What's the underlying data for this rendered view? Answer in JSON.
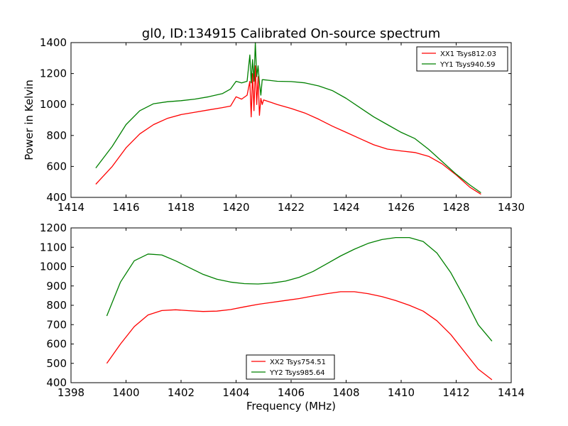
{
  "figure": {
    "title": "gl0, ID:134915 Calibrated On-source spectrum",
    "ylabel": "Power in Kelvin",
    "xlabel": "Frequency (MHz)"
  },
  "chart_data": [
    {
      "type": "line",
      "title": "gl0, ID:134915 Calibrated On-source spectrum",
      "ylabel": "Power in Kelvin",
      "xlabel": "",
      "xlim": [
        1414,
        1430
      ],
      "ylim": [
        400,
        1400
      ],
      "xticks": [
        1414,
        1416,
        1418,
        1420,
        1422,
        1424,
        1426,
        1428,
        1430
      ],
      "yticks": [
        400,
        600,
        800,
        1000,
        1200,
        1400
      ],
      "grid": false,
      "legend_position": "top-right",
      "series": [
        {
          "name": "XX1 Tsys812.03",
          "color": "#ff0000",
          "x": [
            1414.9,
            1415.5,
            1416.0,
            1416.5,
            1417.0,
            1417.5,
            1418.0,
            1418.5,
            1419.0,
            1419.5,
            1419.8,
            1420.0,
            1420.2,
            1420.4,
            1420.5,
            1420.55,
            1420.6,
            1420.65,
            1420.7,
            1420.75,
            1420.8,
            1420.85,
            1420.9,
            1420.95,
            1421.0,
            1421.5,
            1422.0,
            1422.5,
            1423.0,
            1423.5,
            1424.0,
            1424.5,
            1425.0,
            1425.5,
            1426.0,
            1426.5,
            1427.0,
            1427.5,
            1428.0,
            1428.5,
            1428.9
          ],
          "y": [
            485,
            600,
            720,
            810,
            870,
            910,
            935,
            950,
            965,
            980,
            990,
            1050,
            1035,
            1060,
            1150,
            920,
            1200,
            960,
            1250,
            1000,
            1180,
            930,
            1040,
            1000,
            1030,
            1000,
            975,
            945,
            905,
            860,
            820,
            780,
            740,
            712,
            700,
            690,
            665,
            615,
            545,
            465,
            420
          ]
        },
        {
          "name": "YY1 Tsys940.59",
          "color": "#008000",
          "x": [
            1414.9,
            1415.5,
            1416.0,
            1416.5,
            1417.0,
            1417.5,
            1418.0,
            1418.5,
            1419.0,
            1419.5,
            1419.8,
            1420.0,
            1420.2,
            1420.4,
            1420.5,
            1420.55,
            1420.6,
            1420.65,
            1420.7,
            1420.75,
            1420.8,
            1420.85,
            1420.9,
            1420.95,
            1421.0,
            1421.5,
            1422.0,
            1422.5,
            1423.0,
            1423.5,
            1424.0,
            1424.5,
            1425.0,
            1425.5,
            1426.0,
            1426.5,
            1427.0,
            1427.5,
            1428.0,
            1428.5,
            1428.9
          ],
          "y": [
            590,
            730,
            870,
            960,
            1005,
            1018,
            1025,
            1035,
            1050,
            1070,
            1100,
            1150,
            1140,
            1150,
            1320,
            1140,
            1290,
            1150,
            1400,
            1180,
            1250,
            1140,
            1060,
            1160,
            1160,
            1150,
            1148,
            1140,
            1120,
            1090,
            1040,
            980,
            920,
            870,
            820,
            780,
            710,
            630,
            550,
            480,
            430
          ]
        }
      ]
    },
    {
      "type": "line",
      "title": "",
      "ylabel": "",
      "xlabel": "Frequency (MHz)",
      "xlim": [
        1398,
        1414
      ],
      "ylim": [
        400,
        1200
      ],
      "xticks": [
        1398,
        1400,
        1402,
        1404,
        1406,
        1408,
        1410,
        1412,
        1414
      ],
      "yticks": [
        400,
        500,
        600,
        700,
        800,
        900,
        1000,
        1100,
        1200
      ],
      "grid": false,
      "legend_position": "bottom-center",
      "series": [
        {
          "name": "XX2 Tsys754.51",
          "color": "#ff0000",
          "x": [
            1399.3,
            1399.8,
            1400.3,
            1400.8,
            1401.3,
            1401.8,
            1402.3,
            1402.8,
            1403.3,
            1403.8,
            1404.3,
            1404.8,
            1405.3,
            1405.8,
            1406.3,
            1406.8,
            1407.3,
            1407.8,
            1408.3,
            1408.8,
            1409.3,
            1409.8,
            1410.3,
            1410.8,
            1411.3,
            1411.8,
            1412.3,
            1412.8,
            1413.3
          ],
          "y": [
            500,
            600,
            690,
            750,
            773,
            777,
            772,
            768,
            770,
            778,
            792,
            805,
            815,
            825,
            835,
            848,
            860,
            870,
            870,
            860,
            845,
            825,
            800,
            770,
            720,
            650,
            560,
            470,
            415
          ]
        },
        {
          "name": "YY2 Tsys985.64",
          "color": "#008000",
          "x": [
            1399.3,
            1399.8,
            1400.3,
            1400.8,
            1401.3,
            1401.8,
            1402.3,
            1402.8,
            1403.3,
            1403.8,
            1404.3,
            1404.8,
            1405.3,
            1405.8,
            1406.3,
            1406.8,
            1407.3,
            1407.8,
            1408.3,
            1408.8,
            1409.3,
            1409.8,
            1410.3,
            1410.8,
            1411.3,
            1411.8,
            1412.3,
            1412.8,
            1413.3
          ],
          "y": [
            745,
            920,
            1030,
            1065,
            1060,
            1030,
            995,
            960,
            935,
            920,
            912,
            910,
            915,
            925,
            945,
            975,
            1015,
            1055,
            1090,
            1120,
            1140,
            1150,
            1150,
            1130,
            1070,
            970,
            840,
            700,
            615
          ]
        }
      ]
    }
  ]
}
